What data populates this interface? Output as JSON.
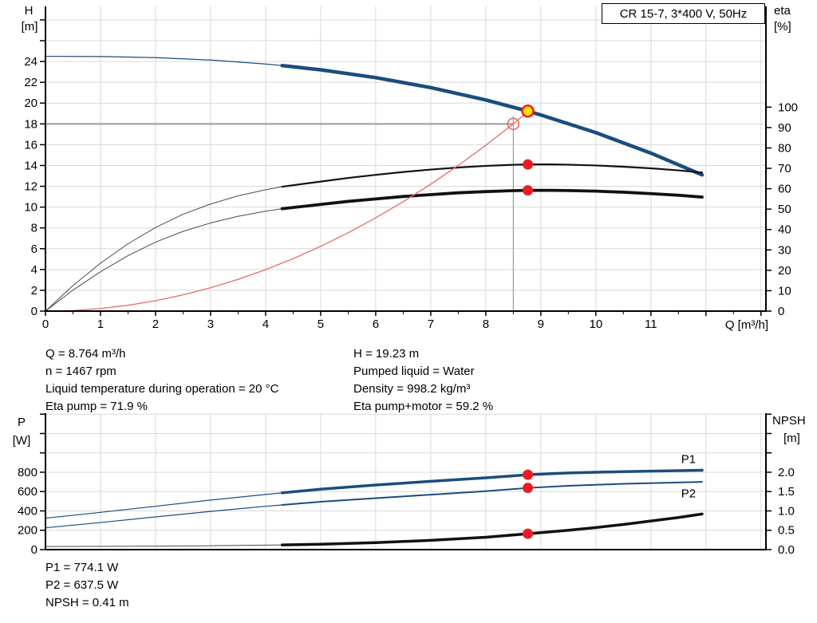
{
  "colors": {
    "blue": "#1b4c7e",
    "black": "#111111",
    "gray": "#4a4a4a",
    "red": "#e46c6c",
    "marker_red": "#ec1c24",
    "marker_yellow": "#ffe100",
    "grid": "#d9d9d9",
    "ref_gray": "#9a9a9a",
    "label_blue": "#1b4c7e"
  },
  "info_top_left": {
    "q": "Q = 8.764 m³/h",
    "n": "n = 1467 rpm",
    "liquid_temp": "Liquid temperature during operation = 20 °C",
    "eta_pump": "Eta pump = 71.9 %"
  },
  "info_top_right": {
    "h": "H = 19.23 m",
    "pumped_liquid": "Pumped liquid = Water",
    "density": "Density = 998.2 kg/m³",
    "eta_pump_motor": "Eta pump+motor = 59.2 %"
  },
  "info_bottom": {
    "p1": "P1 = 774.1 W",
    "p2": "P2 = 637.5 W",
    "npsh": "NPSH = 0.41 m"
  },
  "chart_data": [
    {
      "type": "line",
      "name": "qh-eta-chart",
      "title": "CR 15-7, 3*400 V, 50Hz",
      "x": {
        "label": "Q [m³/h]",
        "min": 0,
        "max": 13.09,
        "minor_step": 1,
        "minor_start": 0.5,
        "minor_end": 12.5,
        "labeled_ticks": [
          [
            0,
            "0"
          ],
          [
            1,
            "1"
          ],
          [
            2,
            "2"
          ],
          [
            3,
            "3"
          ],
          [
            4,
            "4"
          ],
          [
            5,
            "5"
          ],
          [
            6,
            "6"
          ],
          [
            7,
            "7"
          ],
          [
            8,
            "8"
          ],
          [
            9,
            "9"
          ],
          [
            10,
            "10"
          ],
          [
            11,
            "11"
          ]
        ],
        "unlabeled_ticks": [
          12,
          13
        ]
      },
      "y_left": {
        "label_lines": [
          "H",
          "[m]"
        ],
        "min": 0,
        "max": 29.3,
        "labeled_ticks": [
          [
            0,
            "0"
          ],
          [
            2,
            "2"
          ],
          [
            4,
            "4"
          ],
          [
            6,
            "6"
          ],
          [
            8,
            "8"
          ],
          [
            10,
            "10"
          ],
          [
            12,
            "12"
          ],
          [
            14,
            "14"
          ],
          [
            16,
            "16"
          ],
          [
            18,
            "18"
          ],
          [
            20,
            "20"
          ],
          [
            22,
            "22"
          ],
          [
            24,
            "24"
          ]
        ],
        "unlabeled_ticks": [
          26,
          28
        ]
      },
      "y_right": {
        "label_lines": [
          "eta",
          "[%]"
        ],
        "min": 0,
        "max": 149.4,
        "labeled_ticks": [
          [
            0,
            "0"
          ],
          [
            10,
            "10"
          ],
          [
            20,
            "20"
          ],
          [
            30,
            "30"
          ],
          [
            40,
            "40"
          ],
          [
            50,
            "50"
          ],
          [
            60,
            "60"
          ],
          [
            70,
            "70"
          ],
          [
            80,
            "80"
          ],
          [
            90,
            "90"
          ],
          [
            100,
            "100"
          ]
        ],
        "unlabeled_ticks": []
      },
      "ref_lines": [
        {
          "name": "duty-head-line",
          "axis": "left",
          "color": "ref_gray",
          "width": 2,
          "points": [
            [
              0,
              18
            ],
            [
              8.5,
              18
            ]
          ]
        },
        {
          "name": "duty-flow-line",
          "axis": "left",
          "color": "ref_gray",
          "width": 1.2,
          "points": [
            [
              8.5,
              18.75
            ],
            [
              8.5,
              0
            ]
          ]
        }
      ],
      "series": [
        {
          "name": "qh-curve-low",
          "axis": "left",
          "color": "blue",
          "width": 1.2,
          "points": [
            [
              0,
              24.5
            ],
            [
              1,
              24.48
            ],
            [
              2,
              24.37
            ],
            [
              3,
              24.14
            ],
            [
              4,
              23.76
            ],
            [
              4.3,
              23.61
            ]
          ]
        },
        {
          "name": "qh-curve",
          "axis": "left",
          "color": "blue",
          "width": 4.5,
          "points": [
            [
              4.3,
              23.61
            ],
            [
              5,
              23.2
            ],
            [
              6,
              22.45
            ],
            [
              7,
              21.49
            ],
            [
              8,
              20.3
            ],
            [
              8.764,
              19.23
            ],
            [
              9,
              18.86
            ],
            [
              10,
              17.16
            ],
            [
              11,
              15.19
            ],
            [
              11.93,
              13.1
            ]
          ]
        },
        {
          "name": "eta-pump-curve-low",
          "axis": "right",
          "color": "gray",
          "width": 1,
          "points": [
            [
              0,
              0
            ],
            [
              0.5,
              12.5
            ],
            [
              1,
              23.5
            ],
            [
              1.5,
              33
            ],
            [
              2,
              41
            ],
            [
              2.5,
              47.5
            ],
            [
              3,
              52.5
            ],
            [
              3.5,
              56.5
            ],
            [
              4,
              59.5
            ],
            [
              4.3,
              61
            ]
          ]
        },
        {
          "name": "eta-pump-curve",
          "axis": "right",
          "color": "black",
          "width": 2.2,
          "points": [
            [
              4.3,
              61
            ],
            [
              5,
              63.5
            ],
            [
              5.5,
              65.3
            ],
            [
              6,
              66.8
            ],
            [
              6.5,
              68.2
            ],
            [
              7,
              69.4
            ],
            [
              7.5,
              70.4
            ],
            [
              8,
              71.2
            ],
            [
              8.5,
              71.75
            ],
            [
              8.764,
              71.9
            ],
            [
              9.2,
              71.9
            ],
            [
              9.5,
              71.8
            ],
            [
              10,
              71.4
            ],
            [
              10.5,
              70.8
            ],
            [
              11,
              70
            ],
            [
              11.5,
              69
            ],
            [
              11.93,
              67.9
            ]
          ]
        },
        {
          "name": "eta-pump-motor-curve-low",
          "axis": "right",
          "color": "gray",
          "width": 1,
          "points": [
            [
              0,
              0
            ],
            [
              0.5,
              10.3
            ],
            [
              1,
              19.3
            ],
            [
              1.5,
              27.2
            ],
            [
              2,
              33.8
            ],
            [
              2.5,
              39.1
            ],
            [
              3,
              43.2
            ],
            [
              3.5,
              46.5
            ],
            [
              4,
              49
            ],
            [
              4.3,
              50.2
            ]
          ]
        },
        {
          "name": "eta-pump-motor-curve",
          "axis": "right",
          "color": "black",
          "width": 3.8,
          "points": [
            [
              4.3,
              50.2
            ],
            [
              5,
              52.3
            ],
            [
              5.5,
              53.8
            ],
            [
              6,
              55
            ],
            [
              6.5,
              56.2
            ],
            [
              7,
              57.1
            ],
            [
              7.5,
              58
            ],
            [
              8,
              58.6
            ],
            [
              8.5,
              59.07
            ],
            [
              8.764,
              59.2
            ],
            [
              9.2,
              59.2
            ],
            [
              9.5,
              59.1
            ],
            [
              10,
              58.8
            ],
            [
              10.5,
              58.3
            ],
            [
              11,
              57.6
            ],
            [
              11.5,
              56.8
            ],
            [
              11.93,
              55.9
            ]
          ]
        },
        {
          "name": "system-curve",
          "axis": "left",
          "color": "red",
          "width": 1.3,
          "points": [
            [
              0,
              0
            ],
            [
              0.5,
              0.06
            ],
            [
              1,
              0.25
            ],
            [
              1.5,
              0.56
            ],
            [
              2,
              1.0
            ],
            [
              2.5,
              1.56
            ],
            [
              3,
              2.24
            ],
            [
              3.5,
              3.05
            ],
            [
              4,
              3.99
            ],
            [
              4.5,
              5.04
            ],
            [
              5,
              6.23
            ],
            [
              5.5,
              7.53
            ],
            [
              6,
              8.97
            ],
            [
              6.5,
              10.52
            ],
            [
              7,
              12.2
            ],
            [
              7.5,
              14.01
            ],
            [
              8,
              15.94
            ],
            [
              8.5,
              18.0
            ],
            [
              8.79,
              19.3
            ]
          ]
        }
      ],
      "markers": [
        {
          "name": "requested-duty-point",
          "shape": "open-circle",
          "axis": "left",
          "at": [
            8.5,
            18
          ]
        },
        {
          "name": "eta-pump-point",
          "shape": "red-dot",
          "axis": "right",
          "at": [
            8.764,
            71.9
          ]
        },
        {
          "name": "eta-pump-motor-point",
          "shape": "red-dot",
          "axis": "right",
          "at": [
            8.764,
            59.2
          ]
        },
        {
          "name": "operating-point",
          "shape": "yellow-dot",
          "axis": "left",
          "at": [
            8.764,
            19.23
          ]
        }
      ],
      "annotations": []
    },
    {
      "type": "line",
      "name": "power-npsh-chart",
      "x": {
        "label": "",
        "min": 0,
        "max": 13.09,
        "labeled_ticks": [],
        "unlabeled_ticks": []
      },
      "y_left": {
        "label_lines": [
          "P",
          "[W]"
        ],
        "min": 0,
        "max": 1410,
        "labeled_ticks": [
          [
            0,
            "0"
          ],
          [
            200,
            "200"
          ],
          [
            400,
            "400"
          ],
          [
            600,
            "600"
          ],
          [
            800,
            "800"
          ]
        ],
        "unlabeled_ticks": [
          1000,
          1200,
          1400
        ]
      },
      "y_right": {
        "label_lines": [
          "NPSH",
          "[m]"
        ],
        "min": 0,
        "max": 3.525,
        "labeled_ticks": [
          [
            0,
            "0.0"
          ],
          [
            0.5,
            "0.5"
          ],
          [
            1,
            "1.0"
          ],
          [
            1.5,
            "1.5"
          ],
          [
            2,
            "2.0"
          ]
        ],
        "unlabeled_ticks": [
          2.5,
          3.0,
          3.5
        ]
      },
      "ref_lines": [],
      "series": [
        {
          "name": "p1-curve-low",
          "axis": "left",
          "color": "blue",
          "width": 1.2,
          "points": [
            [
              0,
              325
            ],
            [
              1,
              385
            ],
            [
              2,
              448
            ],
            [
              3,
              512
            ],
            [
              4,
              570
            ],
            [
              4.3,
              587
            ]
          ]
        },
        {
          "name": "p1-curve",
          "axis": "left",
          "color": "blue",
          "width": 3.5,
          "points": [
            [
              4.3,
              587
            ],
            [
              5,
              625
            ],
            [
              6,
              668
            ],
            [
              7,
              706
            ],
            [
              8,
              742
            ],
            [
              8.764,
              774
            ],
            [
              9.5,
              793
            ],
            [
              10.5,
              806
            ],
            [
              11.93,
              820
            ]
          ]
        },
        {
          "name": "p2-curve-low",
          "axis": "left",
          "color": "blue",
          "width": 1.2,
          "points": [
            [
              0,
              225
            ],
            [
              1,
              280
            ],
            [
              2,
              338
            ],
            [
              3,
              395
            ],
            [
              4,
              448
            ],
            [
              4.3,
              462
            ]
          ]
        },
        {
          "name": "p2-curve",
          "axis": "left",
          "color": "blue",
          "width": 2,
          "points": [
            [
              4.3,
              462
            ],
            [
              5,
              495
            ],
            [
              6,
              532
            ],
            [
              7,
              568
            ],
            [
              8,
              604
            ],
            [
              8.764,
              637.5
            ],
            [
              9.5,
              660
            ],
            [
              10.5,
              680
            ],
            [
              11.93,
              700
            ]
          ]
        },
        {
          "name": "npsh-curve-low",
          "axis": "right",
          "color": "gray",
          "width": 1,
          "points": [
            [
              0,
              0.08
            ],
            [
              1,
              0.085
            ],
            [
              2,
              0.09
            ],
            [
              3,
              0.1
            ],
            [
              4,
              0.115
            ],
            [
              4.3,
              0.12
            ]
          ]
        },
        {
          "name": "npsh-curve",
          "axis": "right",
          "color": "black",
          "width": 3.5,
          "points": [
            [
              4.3,
              0.12
            ],
            [
              5,
              0.14
            ],
            [
              6,
              0.18
            ],
            [
              7,
              0.24
            ],
            [
              8,
              0.32
            ],
            [
              8.764,
              0.41
            ],
            [
              9.5,
              0.5
            ],
            [
              10,
              0.57
            ],
            [
              10.5,
              0.65
            ],
            [
              11,
              0.74
            ],
            [
              11.5,
              0.83
            ],
            [
              11.93,
              0.92
            ]
          ]
        }
      ],
      "markers": [
        {
          "name": "p1-point",
          "shape": "red-dot",
          "axis": "left",
          "at": [
            8.764,
            774.1
          ]
        },
        {
          "name": "p2-point",
          "shape": "red-dot",
          "axis": "left",
          "at": [
            8.764,
            637.5
          ]
        },
        {
          "name": "npsh-point",
          "shape": "red-dot",
          "axis": "right",
          "at": [
            8.764,
            0.41
          ]
        }
      ],
      "annotations": [
        {
          "name": "p1-label",
          "text": "P1",
          "axis": "left",
          "at": [
            11.55,
            895
          ],
          "color": "label_blue"
        },
        {
          "name": "p2-label",
          "text": "P2",
          "axis": "left",
          "at": [
            11.55,
            540
          ],
          "color": "label_blue"
        }
      ]
    }
  ]
}
